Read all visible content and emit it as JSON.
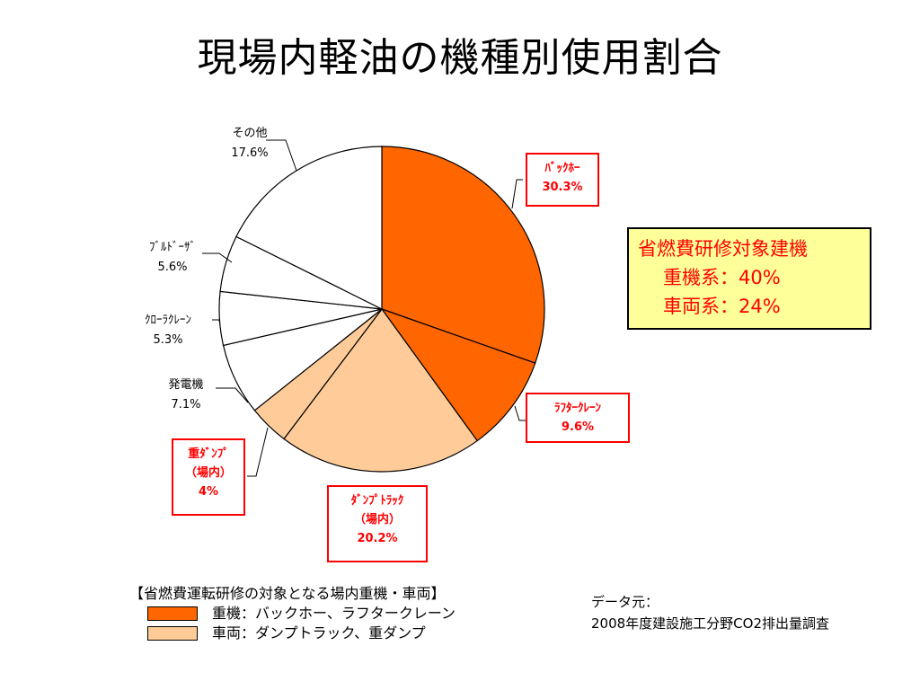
{
  "title": "現場内軽油の機種別使用割合",
  "chart_data": {
    "type": "pie",
    "start_angle_deg": 0,
    "direction": "clockwise",
    "slices": [
      {
        "name": "ﾊﾞｯｸﾎｰ",
        "value": 30.3,
        "label": "30.3%",
        "color": "#ff6600",
        "boxed": true
      },
      {
        "name": "ﾗﾌﾀｰｸﾚｰﾝ",
        "value": 9.6,
        "label": "9.6%",
        "color": "#ff6600",
        "boxed": true
      },
      {
        "name": "ﾀﾞﾝﾌﾟﾄﾗｯｸ\n（場内）",
        "value": 20.2,
        "label": "20.2%",
        "color": "#ffcc99",
        "boxed": true
      },
      {
        "name": "重ﾀﾞﾝﾌﾟ\n（場内）",
        "value": 4,
        "label": "4%",
        "color": "#ffcc99",
        "boxed": true
      },
      {
        "name": "発電機",
        "value": 7.1,
        "label": "7.1%",
        "color": "#ffffff",
        "boxed": false
      },
      {
        "name": "ｸﾛｰﾗｸﾚｰﾝ",
        "value": 5.3,
        "label": "5.3%",
        "color": "#ffffff",
        "boxed": false
      },
      {
        "name": "ﾌﾞﾙﾄﾞｰｻﾞ",
        "value": 5.6,
        "label": "5.6%",
        "color": "#ffffff",
        "boxed": false
      },
      {
        "name": "その他",
        "value": 17.6,
        "label": "17.6%",
        "color": "#ffffff",
        "boxed": false
      }
    ]
  },
  "note": {
    "line1": "省燃費研修対象建機",
    "line2": "重機系：40%",
    "line3": "車両系：24%"
  },
  "legend": {
    "heading": "【省燃費運転研修の対象となる場内重機・車両】",
    "items": [
      {
        "color": "#ff6600",
        "text": "重機：バックホー、ラフタークレーン"
      },
      {
        "color": "#ffcc99",
        "text": "車両：ダンプトラック、重ダンプ"
      }
    ]
  },
  "source": {
    "line1": "データ元：",
    "line2": "2008年度建設施工分野CO2排出量調査"
  }
}
